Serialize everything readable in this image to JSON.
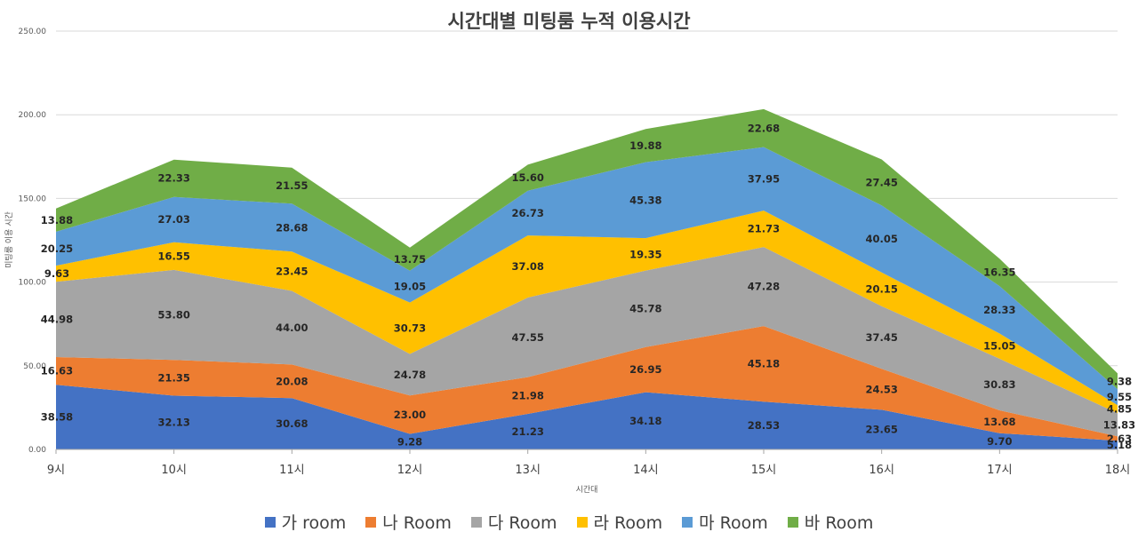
{
  "chart_data": {
    "type": "area",
    "stacked": true,
    "title": "시간대별 미팅룸 누적 이용시간",
    "xlabel": "시간대",
    "ylabel": "미팅룸 이용 시간",
    "ylim": [
      0,
      250
    ],
    "yticks": [
      "0.00",
      "50.00",
      "100.00",
      "150.00",
      "200.00",
      "250.00"
    ],
    "categories": [
      "9시",
      "10시",
      "11시",
      "12시",
      "13시",
      "14시",
      "15시",
      "16시",
      "17시",
      "18시"
    ],
    "grid": true,
    "legend_position": "bottom",
    "series": [
      {
        "name": "가 room",
        "color": "#4472C4",
        "values": [
          38.58,
          32.13,
          30.68,
          9.28,
          21.23,
          34.18,
          28.53,
          23.65,
          9.7,
          5.18
        ],
        "labels": [
          "38.58",
          "32.13",
          "30.68",
          "9.28",
          "21.23",
          "34.18",
          "28.53",
          "23.65",
          "9.70",
          "5.18"
        ]
      },
      {
        "name": "나 Room",
        "color": "#ED7D31",
        "values": [
          16.63,
          21.35,
          20.08,
          23.0,
          21.98,
          26.95,
          45.18,
          24.53,
          13.68,
          2.63
        ],
        "labels": [
          "16.63",
          "21.35",
          "20.08",
          "23.00",
          "21.98",
          "26.95",
          "45.18",
          "24.53",
          "13.68",
          "2.63"
        ]
      },
      {
        "name": "다 Room",
        "color": "#A5A5A5",
        "values": [
          44.98,
          53.8,
          44.0,
          24.78,
          47.55,
          45.78,
          47.28,
          37.45,
          30.83,
          13.83
        ],
        "labels": [
          "44.98",
          "53.80",
          "44.00",
          "24.78",
          "47.55",
          "45.78",
          "47.28",
          "37.45",
          "30.83",
          "13.83"
        ]
      },
      {
        "name": "라 Room",
        "color": "#FFC000",
        "values": [
          9.63,
          16.55,
          23.45,
          30.73,
          37.08,
          19.35,
          21.73,
          20.15,
          15.05,
          4.85
        ],
        "labels": [
          "9.63",
          "16.55",
          "23.45",
          "30.73",
          "37.08",
          "19.35",
          "21.73",
          "20.15",
          "15.05",
          "4.85"
        ]
      },
      {
        "name": "마 Room",
        "color": "#5B9BD5",
        "values": [
          20.25,
          27.03,
          28.68,
          19.05,
          26.73,
          45.38,
          37.95,
          40.05,
          28.33,
          9.55
        ],
        "labels": [
          "20.25",
          "27.03",
          "28.68",
          "19.05",
          "26.73",
          "45.38",
          "37.95",
          "40.05",
          "28.33",
          "9.55"
        ]
      },
      {
        "name": "바 Room",
        "color": "#70AD47",
        "values": [
          13.88,
          22.33,
          21.55,
          13.75,
          15.6,
          19.88,
          22.68,
          27.45,
          16.35,
          9.38
        ],
        "labels": [
          "13.88",
          "22.33",
          "21.55",
          "13.75",
          "15.60",
          "19.88",
          "22.68",
          "27.45",
          "16.35",
          "9.38"
        ]
      }
    ]
  }
}
